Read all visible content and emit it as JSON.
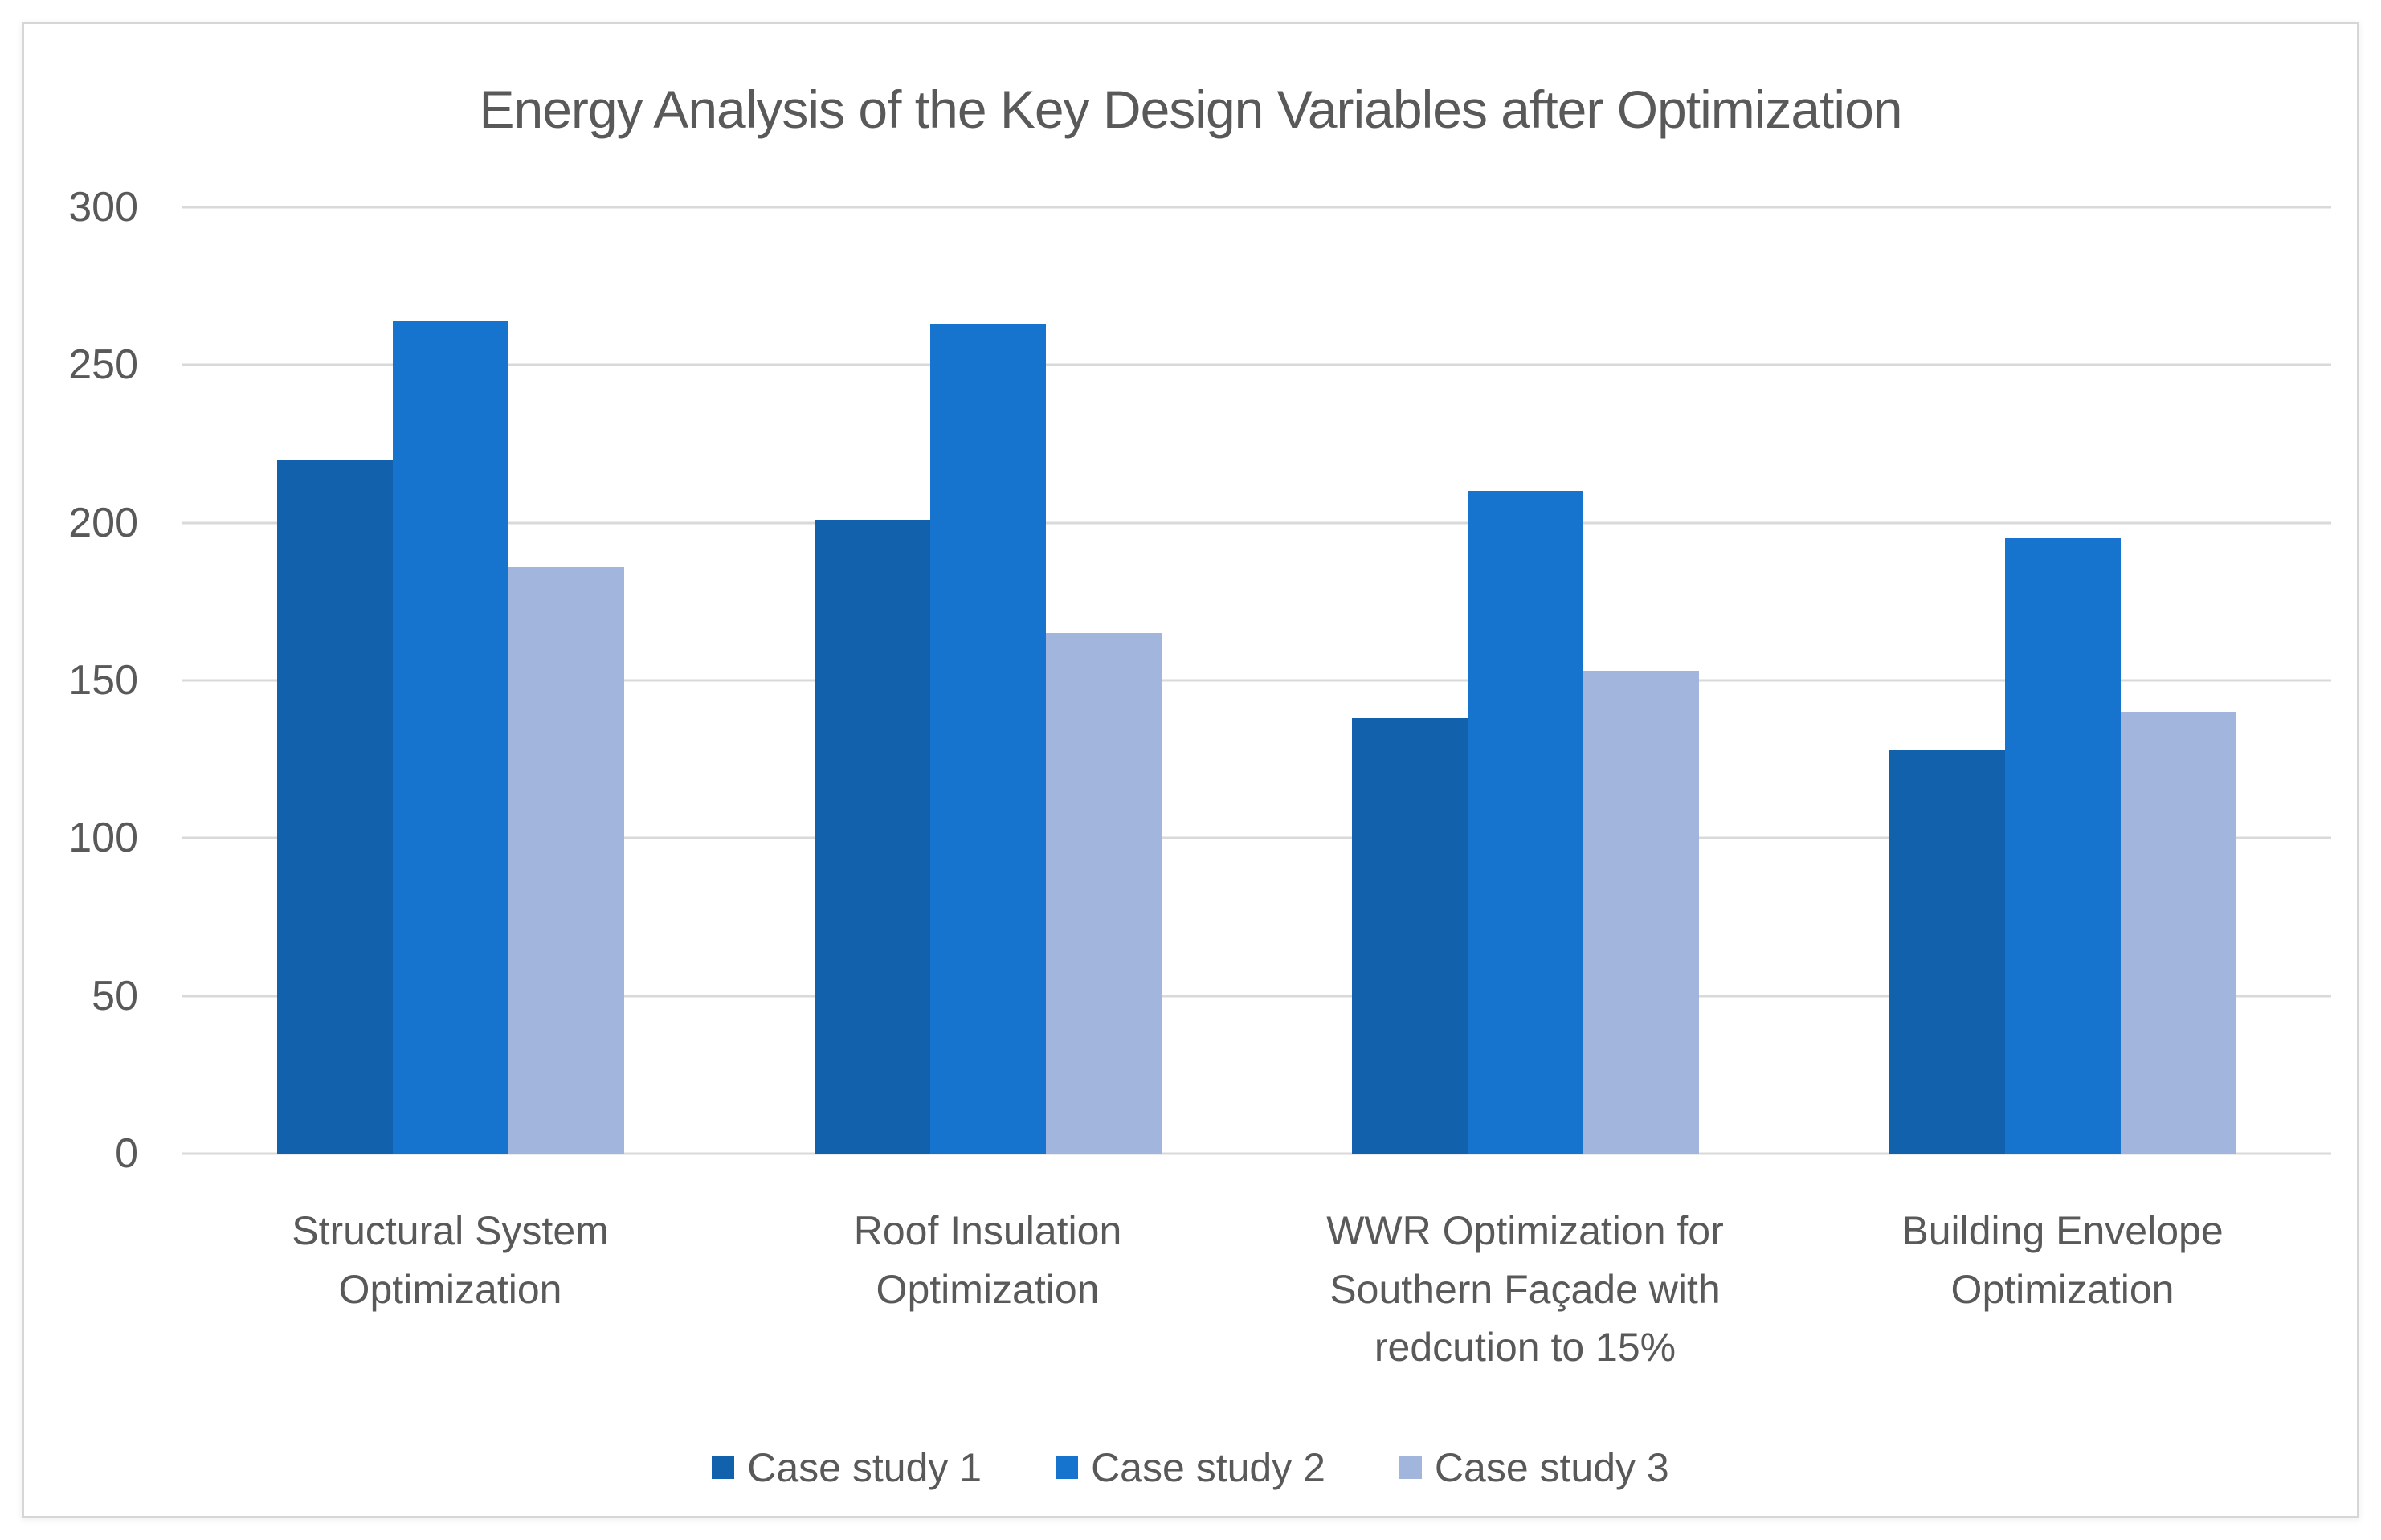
{
  "chart_data": {
    "type": "bar",
    "title": "Energy Analysis of the Key Design Variables after Optimization",
    "categories": [
      "Structural System Optimization",
      "Roof Insulation Optimization",
      "WWR Optimization for Southern Façade with redcution to 15%",
      "Building Envelope Optimization"
    ],
    "series": [
      {
        "name": "Case study 1",
        "color": "#1261AC",
        "values": [
          220,
          201,
          138,
          128
        ]
      },
      {
        "name": "Case study 2",
        "color": "#1674CF",
        "values": [
          264,
          263,
          210,
          195
        ]
      },
      {
        "name": "Case study 3",
        "color": "#A2B5DC",
        "values": [
          186,
          165,
          153,
          140
        ]
      }
    ],
    "y_ticks": [
      0,
      50,
      100,
      150,
      200,
      250,
      300
    ],
    "ylim": [
      0,
      300
    ],
    "xlabel": "",
    "ylabel": "",
    "grid": true,
    "legend_position": "bottom",
    "colors": {
      "gridline": "#D9D9D9",
      "text": "#595959",
      "border": "#D6D6D6",
      "background": "#FFFFFF"
    }
  }
}
